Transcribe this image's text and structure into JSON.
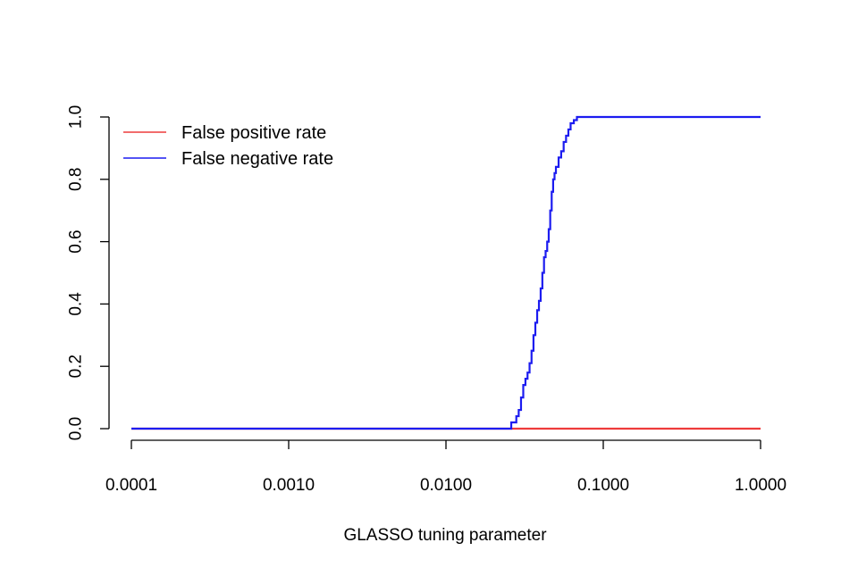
{
  "chart_data": {
    "type": "line",
    "title": "",
    "xlabel": "GLASSO tuning parameter",
    "ylabel": "",
    "x_scale": "log10",
    "xlim": [
      0.0001,
      1.0
    ],
    "ylim": [
      0.0,
      1.0
    ],
    "x_ticks": [
      0.0001,
      0.001,
      0.01,
      0.1,
      1.0
    ],
    "x_tick_labels": [
      "0.0001",
      "0.0010",
      "0.0100",
      "0.1000",
      "1.0000"
    ],
    "y_ticks": [
      0.0,
      0.2,
      0.4,
      0.6,
      0.8,
      1.0
    ],
    "y_tick_labels": [
      "0.0",
      "0.2",
      "0.4",
      "0.6",
      "0.8",
      "1.0"
    ],
    "grid": false,
    "legend_position": "top-left",
    "series": [
      {
        "name": "False positive rate",
        "color": "#ee3b3b",
        "x": [
          0.0001,
          0.001,
          0.01,
          0.0245,
          0.05,
          0.1,
          1.0
        ],
        "y": [
          0.0,
          0.0,
          0.0,
          0.0,
          0.0,
          0.0,
          0.0
        ]
      },
      {
        "name": "False negative rate",
        "color": "#1c1cf0",
        "x": [
          0.0001,
          0.001,
          0.01,
          0.0245,
          0.026,
          0.028,
          0.029,
          0.03,
          0.031,
          0.032,
          0.033,
          0.034,
          0.035,
          0.036,
          0.037,
          0.038,
          0.039,
          0.04,
          0.041,
          0.042,
          0.043,
          0.044,
          0.045,
          0.046,
          0.047,
          0.048,
          0.049,
          0.05,
          0.052,
          0.054,
          0.056,
          0.058,
          0.06,
          0.062,
          0.065,
          0.068,
          0.07,
          0.1,
          1.0
        ],
        "y": [
          0.0,
          0.0,
          0.0,
          0.0,
          0.02,
          0.04,
          0.06,
          0.1,
          0.14,
          0.16,
          0.18,
          0.21,
          0.25,
          0.3,
          0.34,
          0.38,
          0.41,
          0.45,
          0.5,
          0.55,
          0.57,
          0.6,
          0.64,
          0.7,
          0.76,
          0.8,
          0.82,
          0.84,
          0.87,
          0.89,
          0.92,
          0.94,
          0.96,
          0.98,
          0.99,
          1.0,
          1.0,
          1.0,
          1.0
        ]
      }
    ]
  }
}
